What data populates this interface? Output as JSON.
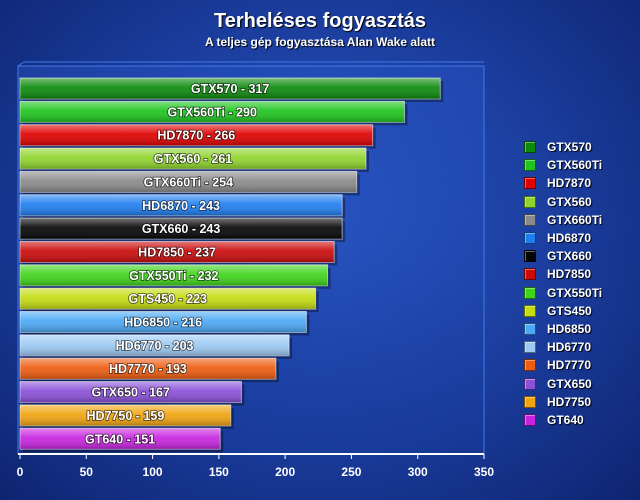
{
  "header": {
    "title": "Terheléses fogyasztás",
    "subtitle": "A teljes gép fogyasztása Alan Wake alatt"
  },
  "chart_data": {
    "type": "bar",
    "orientation": "horizontal",
    "title": "Terheléses fogyasztás",
    "subtitle": "A teljes gép fogyasztása Alan Wake alatt",
    "xlim": [
      0,
      350
    ],
    "xticks": [
      0,
      50,
      100,
      150,
      200,
      250,
      300,
      350
    ],
    "grid": false,
    "legend_position": "right",
    "bars": [
      {
        "name": "GTX570",
        "label": "GTX570 - 317",
        "value": 317,
        "color": "#0c8a0c"
      },
      {
        "name": "GTX560Ti",
        "label": "GTX560Ti - 290",
        "value": 290,
        "color": "#1ec51e"
      },
      {
        "name": "HD7870",
        "label": "HD7870 - 266",
        "value": 266,
        "color": "#e00000"
      },
      {
        "name": "GTX560",
        "label": "GTX560 - 261",
        "value": 261,
        "color": "#8fd42c"
      },
      {
        "name": "GTX660Ti",
        "label": "GTX660Ti - 254",
        "value": 254,
        "color": "#8a8a8a"
      },
      {
        "name": "HD6870",
        "label": "HD6870 - 243",
        "value": 243,
        "color": "#1e7ef0"
      },
      {
        "name": "GTX660",
        "label": "GTX660 - 243",
        "value": 243,
        "color": "#050505"
      },
      {
        "name": "HD7850",
        "label": "HD7850 - 237",
        "value": 237,
        "color": "#cc0a0a"
      },
      {
        "name": "GTX550Ti",
        "label": "GTX550Ti - 232",
        "value": 232,
        "color": "#3fd41a"
      },
      {
        "name": "GTS450",
        "label": "GTS450 - 223",
        "value": 223,
        "color": "#c4dc10"
      },
      {
        "name": "HD6850",
        "label": "HD6850 - 216",
        "value": 216,
        "color": "#4aa8f4"
      },
      {
        "name": "HD6770",
        "label": "HD6770 - 203",
        "value": 203,
        "color": "#9ccaf4"
      },
      {
        "name": "HD7770",
        "label": "HD7770 - 193",
        "value": 193,
        "color": "#ee5c10"
      },
      {
        "name": "GTX650",
        "label": "GTX650 - 167",
        "value": 167,
        "color": "#8a50d8"
      },
      {
        "name": "HD7750",
        "label": "HD7750 - 159",
        "value": 159,
        "color": "#f0a410"
      },
      {
        "name": "GT640",
        "label": "GT640 - 151",
        "value": 151,
        "color": "#c824e0"
      }
    ]
  }
}
